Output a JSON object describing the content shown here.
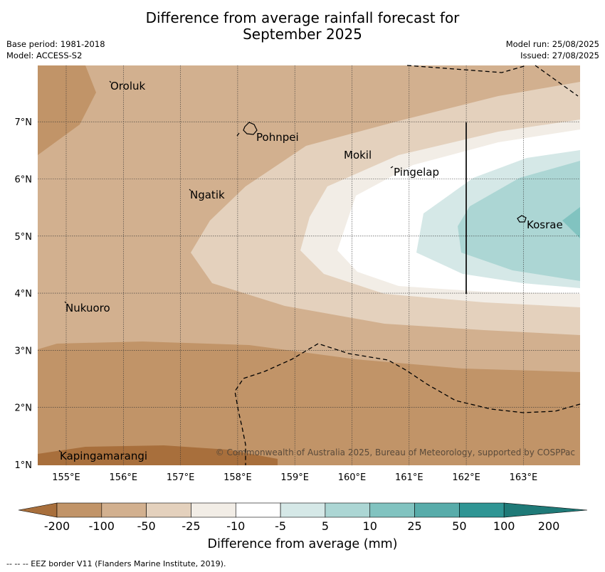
{
  "title_line1": "Difference from average rainfall forecast for",
  "title_line2": "September 2025",
  "meta": {
    "base_period": "Base period: 1981-2018",
    "model": "Model: ACCESS-S2",
    "model_run": "Model run: 25/08/2025",
    "issued": "Issued: 27/08/2025"
  },
  "map": {
    "lat_labels": [
      "1°N",
      "2°N",
      "3°N",
      "4°N",
      "5°N",
      "6°N",
      "7°N"
    ],
    "lon_labels": [
      "155°E",
      "156°E",
      "157°E",
      "158°E",
      "159°E",
      "160°E",
      "161°E",
      "162°E",
      "163°E"
    ],
    "places": [
      "Oroluk",
      "Pohnpei",
      "Mokil",
      "Pingelap",
      "Ngatik",
      "Kosrae",
      "Nukuoro",
      "Kapingamarangi"
    ],
    "copyright": "© Commonwealth of Australia 2025, Bureau of Meteorology, supported by COSPPac"
  },
  "colorbar": {
    "title": "Difference from average (mm)",
    "ticks": [
      "-200",
      "-100",
      "-50",
      "-25",
      "-10",
      "-5",
      "5",
      "10",
      "25",
      "50",
      "100",
      "200"
    ],
    "colors": [
      "#a86f3c",
      "#c19468",
      "#d2b08f",
      "#e4d1bd",
      "#f2ede6",
      "#ffffff",
      "#d5e8e7",
      "#acd6d4",
      "#81c3c0",
      "#58acaa",
      "#2f9594",
      "#1f7a78"
    ]
  },
  "eez_note": "-- -- -- EEZ border V11 (Flanders Marine Institute, 2019)."
}
